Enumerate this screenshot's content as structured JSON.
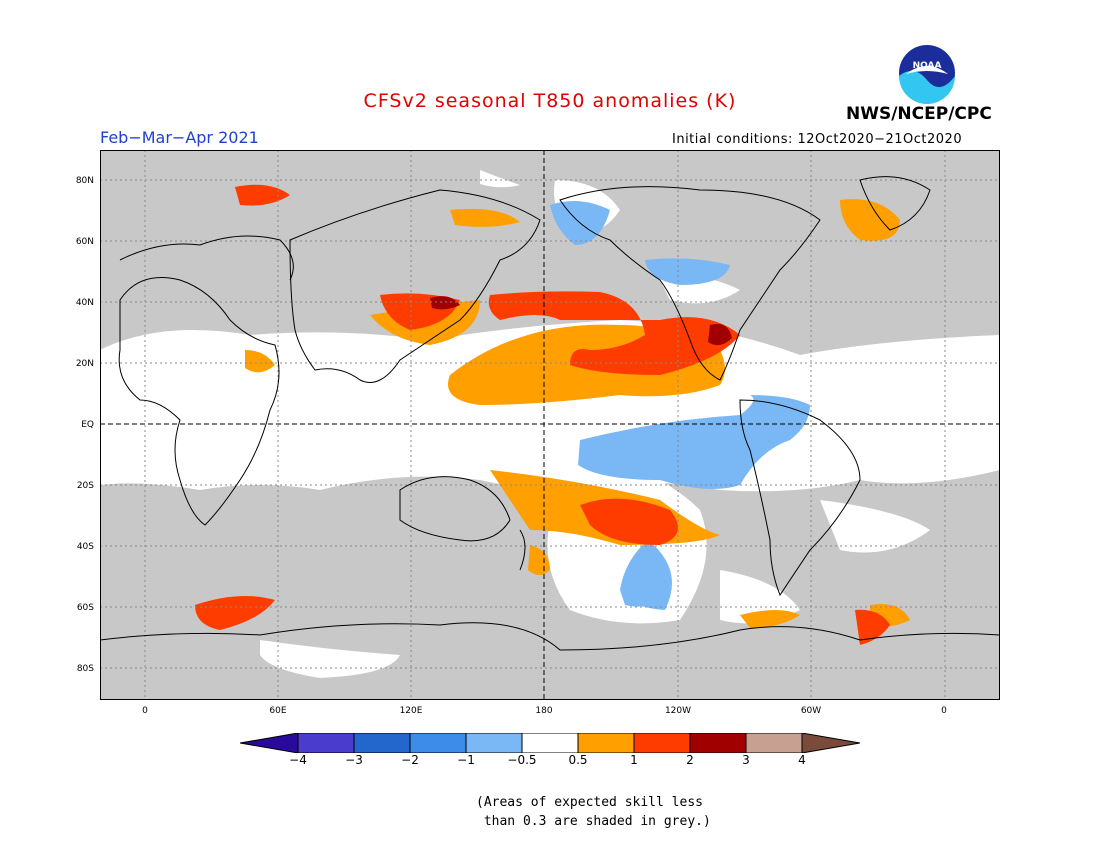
{
  "title": "CFSv2 seasonal T850 anomalies (K)",
  "period": "Feb−Mar−Apr 2021",
  "initial_conditions": "Initial conditions: 12Oct2020−21Oct2020",
  "agency": "NWS/NCEP/CPC",
  "logo_text": "NOAA",
  "colors": {
    "title": "#e00000",
    "period": "#2040d0",
    "grey_mask": "#c8c8c8",
    "ocean_white": "#ffffff",
    "coast": "#000000"
  },
  "lat_labels": [
    "80N",
    "60N",
    "40N",
    "20N",
    "EQ",
    "20S",
    "40S",
    "60S",
    "80S"
  ],
  "lon_labels": [
    "0",
    "60E",
    "120E",
    "180",
    "120W",
    "60W",
    "0"
  ],
  "colorbar": {
    "labels": [
      "−4",
      "−3",
      "−2",
      "−1",
      "−0.5",
      "0.5",
      "1",
      "2",
      "3",
      "4"
    ],
    "colors": [
      "#2a0a9a",
      "#4a3ccc",
      "#2366cc",
      "#3d8cea",
      "#7ab8f5",
      "#ffffff",
      "#ff9f00",
      "#ff3c00",
      "#a00000",
      "#c8a092",
      "#7a4b3a"
    ]
  },
  "note_lines": [
    "(Areas of expected skill less",
    " than 0.3 are shaded in grey.)"
  ]
}
